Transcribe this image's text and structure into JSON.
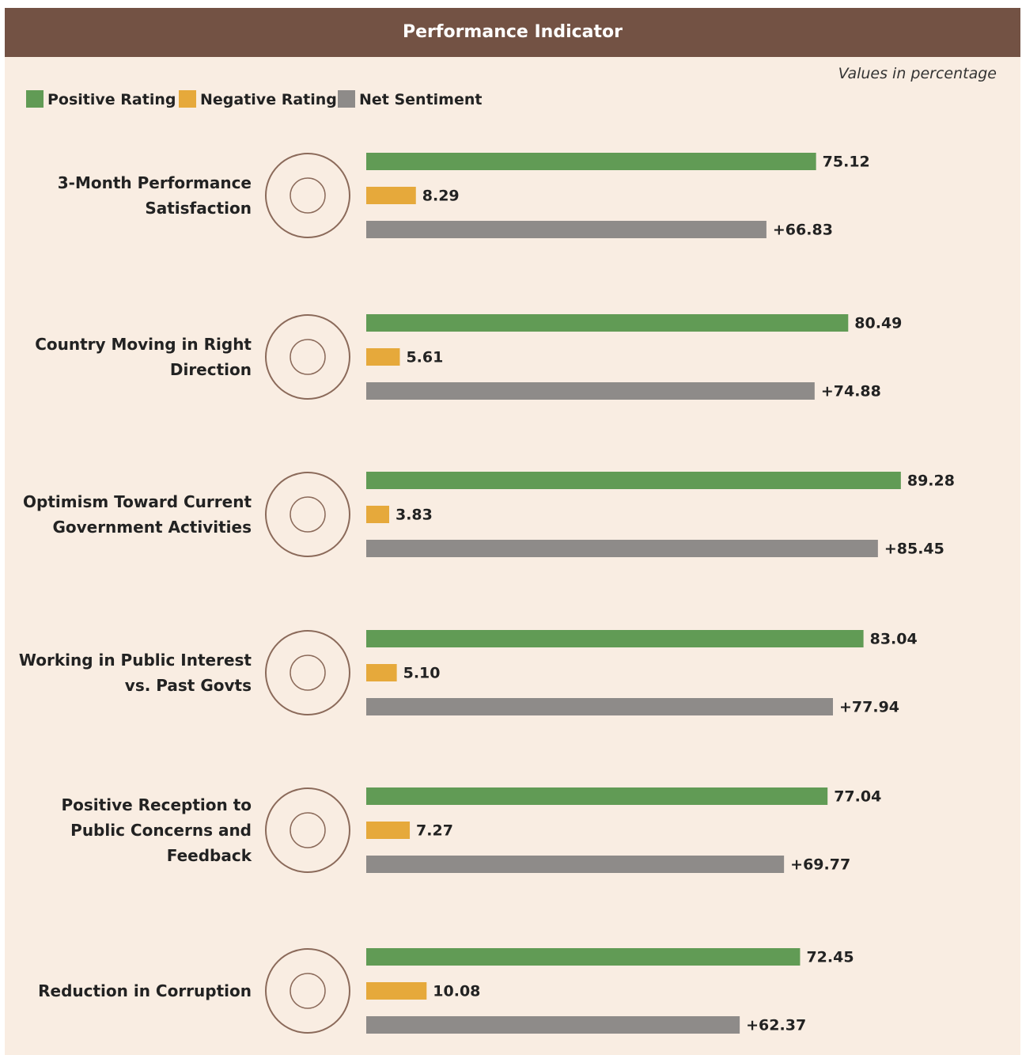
{
  "chart_data": {
    "type": "bar",
    "orientation": "horizontal",
    "title": "Performance Indicator",
    "subtitle": "Values in percentage",
    "categories": [
      "3-Month Performance\nSatisfaction",
      "Country Moving in Right\nDirection",
      "Optimism Toward Current\nGovernment Activities",
      "Working in Public Interest\nvs. Past Govts",
      "Positive Reception to\nPublic Concerns and\nFeedback",
      "Reduction in Corruption"
    ],
    "series": [
      {
        "name": "Positive Rating",
        "color": "#619b55",
        "values": [
          75.12,
          80.49,
          89.28,
          83.04,
          77.04,
          72.45
        ]
      },
      {
        "name": "Negative Rating",
        "color": "#e6a93b",
        "values": [
          8.29,
          5.61,
          3.83,
          5.1,
          7.27,
          10.08
        ],
        "value_labels": [
          "8.29",
          "5.61",
          "3.83",
          "5.10",
          "7.27",
          "10.08"
        ]
      },
      {
        "name": "Net Sentiment",
        "color": "#8e8b89",
        "values": [
          66.83,
          74.88,
          85.45,
          77.94,
          69.77,
          62.37
        ],
        "value_labels": [
          "+66.83",
          "+74.88",
          "+85.45",
          "+77.94",
          "+69.77",
          "+62.37"
        ]
      }
    ]
  }
}
